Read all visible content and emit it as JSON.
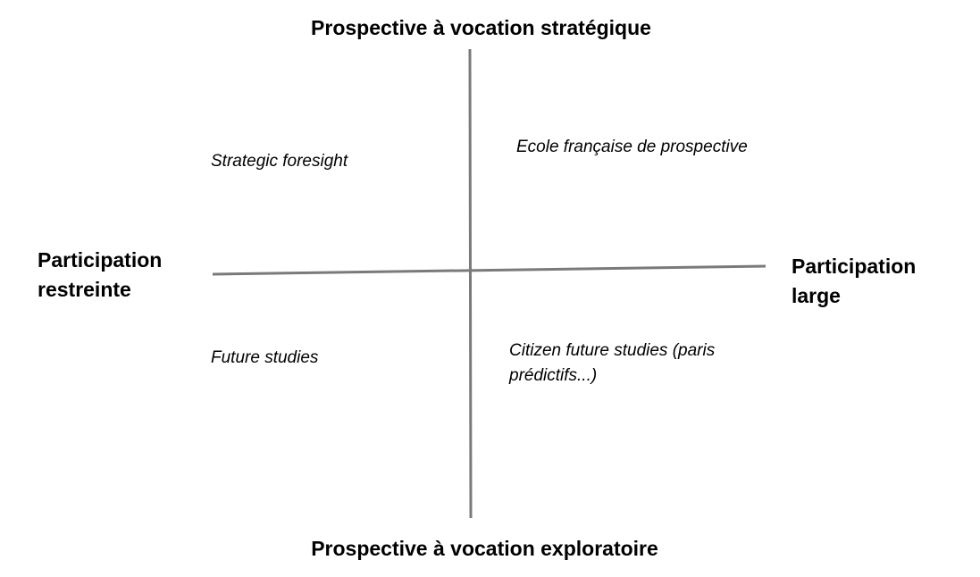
{
  "diagram": {
    "top_pole": "Prospective à vocation stratégique",
    "bottom_pole": "Prospective à vocation exploratoire",
    "left_pole": [
      "Participation",
      "restreinte"
    ],
    "right_pole": [
      "Participation",
      "large"
    ],
    "quadrants": {
      "top_left": "Strategic foresight",
      "top_right": "Ecole française de prospective",
      "bottom_left": "Future studies",
      "bottom_right": "Citizen future studies (paris prédictifs...)"
    },
    "axis_color": "#7a7a7a"
  }
}
